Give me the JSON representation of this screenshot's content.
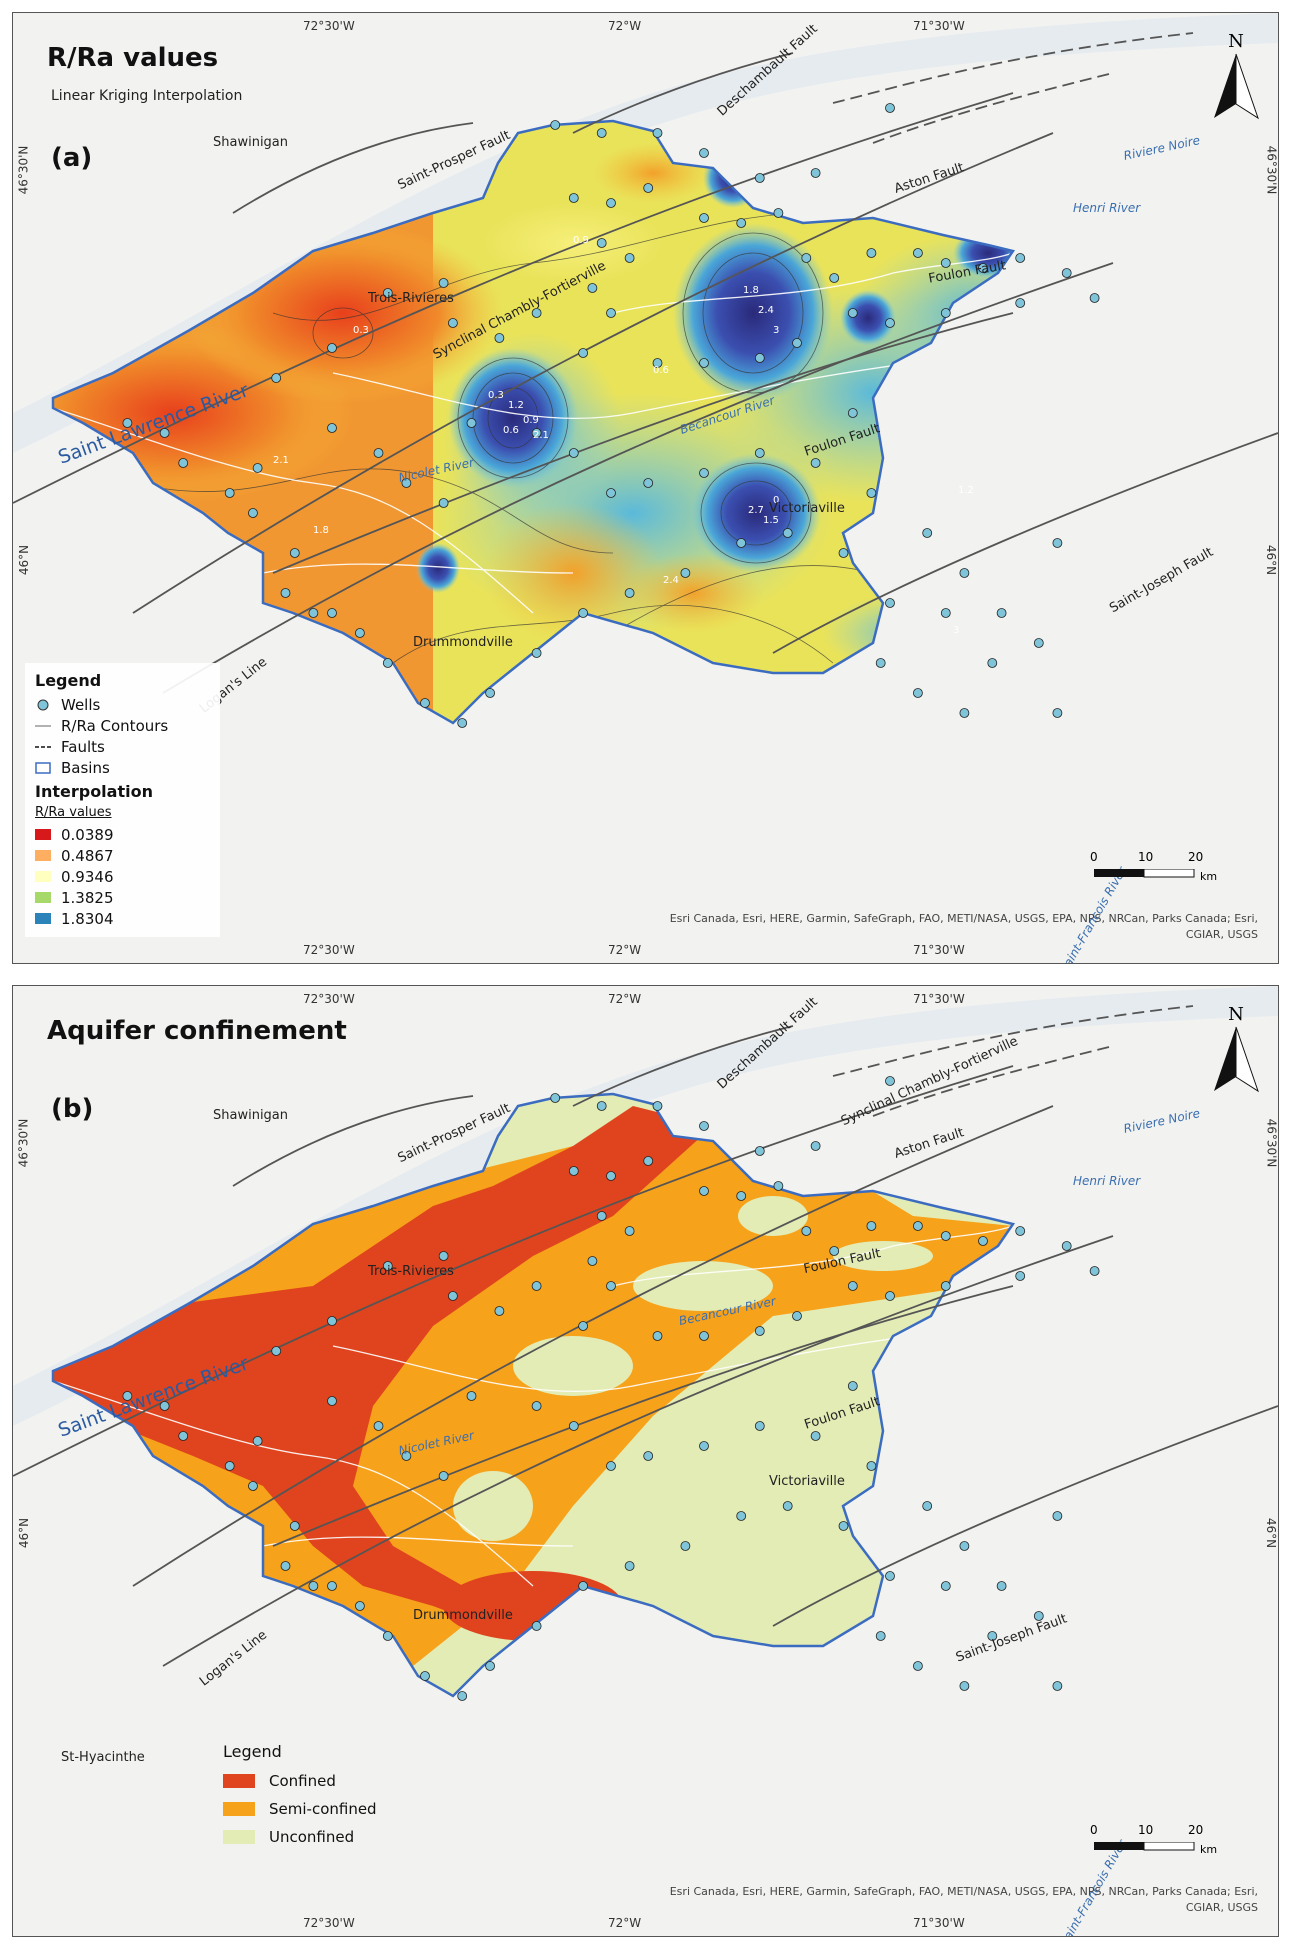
{
  "panel_a": {
    "title": "R/Ra values",
    "subtitle": "Linear Kriging Interpolation",
    "label": "(a)",
    "legend": {
      "title": "Legend",
      "items": [
        "Wells",
        "R/Ra Contours",
        "Faults",
        "Basins"
      ],
      "interp_title": "Interpolation",
      "values_title": "R/Ra values",
      "classes": [
        {
          "label": "0.0389",
          "color": "#d7191c"
        },
        {
          "label": "0.4867",
          "color": "#fdae61"
        },
        {
          "label": "0.9346",
          "color": "#ffffbf"
        },
        {
          "label": "1.3825",
          "color": "#a6d96a"
        },
        {
          "label": "1.8304",
          "color": "#2b83ba"
        }
      ]
    },
    "contour_labels": [
      "0.3",
      "1.2",
      "0.9",
      "0.6",
      "2.1",
      "1.8",
      "2.4",
      "3",
      "2.7",
      "1.5",
      "0"
    ]
  },
  "panel_b": {
    "title": "Aquifer confinement",
    "label": "(b)",
    "legend": {
      "title": "Legend",
      "classes": [
        {
          "label": "Confined",
          "color": "#e0441e"
        },
        {
          "label": "Semi-confined",
          "color": "#f7a21b"
        },
        {
          "label": "Unconfined",
          "color": "#e3ecb5"
        }
      ]
    }
  },
  "coords": {
    "top": [
      "72°30'W",
      "72°W",
      "71°30'W"
    ],
    "bottom": [
      "72°30'W",
      "72°W",
      "71°30'W"
    ],
    "left": [
      "46°30'N",
      "46°N"
    ],
    "right": [
      "46°30'N",
      "46°N"
    ]
  },
  "north": "N",
  "scale": {
    "ticks": [
      "0",
      "10",
      "20"
    ],
    "unit": "km"
  },
  "credit": "Esri Canada, Esri, HERE, Garmin, SafeGraph, FAO, METI/NASA, USGS, EPA, NPS, NRCan, Parks Canada; Esri, CGIAR, USGS",
  "places": {
    "shawinigan": "Shawinigan",
    "trois": "Trois-Rivieres",
    "drummond_a": "Drummondville",
    "drummond_b": "Drummondville",
    "victoriaville": "Victoriaville",
    "sthyacinthe": "St-Hyacinthe"
  },
  "faults": {
    "saint_prosper": "Saint-Prosper Fault",
    "deschambault": "Deschambault Fault",
    "aston": "Aston Fault",
    "foulon1": "Foulon Fault",
    "foulon2": "Foulon Fault",
    "synclinal": "Synclinal Chambly-Fortierville",
    "saint_joseph": "Saint-Joseph Fault",
    "logan": "Logan's Line"
  },
  "rivers": {
    "saint_lawrence": "Saint Lawrence River",
    "nicolet": "Nicolet River",
    "becancour": "Becancour River",
    "henri": "Henri River",
    "noire": "Riviere Noire",
    "saint_francois": "Saint-Francois River"
  },
  "colors": {
    "basin_outline": "#3b6cc0",
    "well_fill": "#7fc4d8",
    "fault": "#555555"
  }
}
